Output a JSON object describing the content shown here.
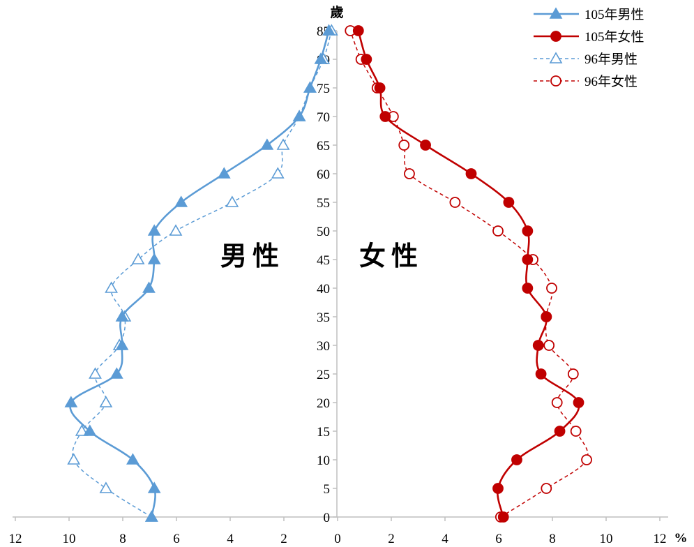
{
  "chart_data": {
    "type": "line",
    "title": "",
    "ylabel": "歲",
    "xlabel": "%",
    "x_note": "percent of population; left side = male, right side = female",
    "y_ticks": [
      0,
      5,
      10,
      15,
      20,
      25,
      30,
      35,
      40,
      45,
      50,
      55,
      60,
      65,
      70,
      75,
      80,
      85
    ],
    "x_ticks": [
      12,
      10,
      8,
      6,
      4,
      2,
      0,
      2,
      4,
      6,
      8,
      10,
      12
    ],
    "xlim": [
      -12,
      12
    ],
    "ylim": [
      0,
      85
    ],
    "side_labels": {
      "male": "男性",
      "female": "女性"
    },
    "legend_position": "top-right",
    "series": [
      {
        "name": "105年男性",
        "side": "male",
        "color": "#5B9BD5",
        "marker": "triangle-filled",
        "dash": false,
        "ages": [
          0,
          5,
          10,
          15,
          20,
          25,
          30,
          35,
          40,
          45,
          50,
          55,
          60,
          65,
          70,
          75,
          80,
          85
        ],
        "values": [
          6.9,
          6.8,
          7.6,
          9.2,
          9.9,
          8.2,
          8.0,
          8.0,
          7.0,
          6.8,
          6.8,
          5.8,
          4.2,
          2.6,
          1.4,
          1.0,
          0.6,
          0.3
        ]
      },
      {
        "name": "105年女性",
        "side": "female",
        "color": "#C00000",
        "marker": "circle-filled",
        "dash": false,
        "ages": [
          0,
          5,
          10,
          15,
          20,
          25,
          30,
          35,
          40,
          45,
          50,
          55,
          60,
          65,
          70,
          75,
          80,
          85
        ],
        "values": [
          6.2,
          6.0,
          6.7,
          8.3,
          9.0,
          7.6,
          7.5,
          7.8,
          7.1,
          7.1,
          7.1,
          6.4,
          5.0,
          3.3,
          1.8,
          1.6,
          1.1,
          0.8
        ]
      },
      {
        "name": "96年男性",
        "side": "male",
        "color": "#5B9BD5",
        "marker": "triangle-open",
        "dash": true,
        "ages": [
          0,
          5,
          10,
          15,
          20,
          25,
          30,
          35,
          40,
          45,
          50,
          55,
          60,
          65,
          70,
          75,
          80,
          85
        ],
        "values": [
          6.9,
          8.6,
          9.8,
          9.5,
          8.6,
          9.0,
          8.1,
          7.9,
          8.4,
          7.4,
          6.0,
          3.9,
          2.2,
          2.0,
          1.4,
          1.0,
          0.5,
          0.2
        ]
      },
      {
        "name": "96年女性",
        "side": "female",
        "color": "#C00000",
        "marker": "circle-open",
        "dash": true,
        "ages": [
          0,
          5,
          10,
          15,
          20,
          25,
          30,
          35,
          40,
          45,
          50,
          55,
          60,
          65,
          70,
          75,
          80,
          85
        ],
        "values": [
          6.1,
          7.8,
          9.3,
          8.9,
          8.2,
          8.8,
          7.9,
          7.8,
          8.0,
          7.3,
          6.0,
          4.4,
          2.7,
          2.5,
          2.1,
          1.5,
          0.9,
          0.5
        ]
      }
    ]
  }
}
